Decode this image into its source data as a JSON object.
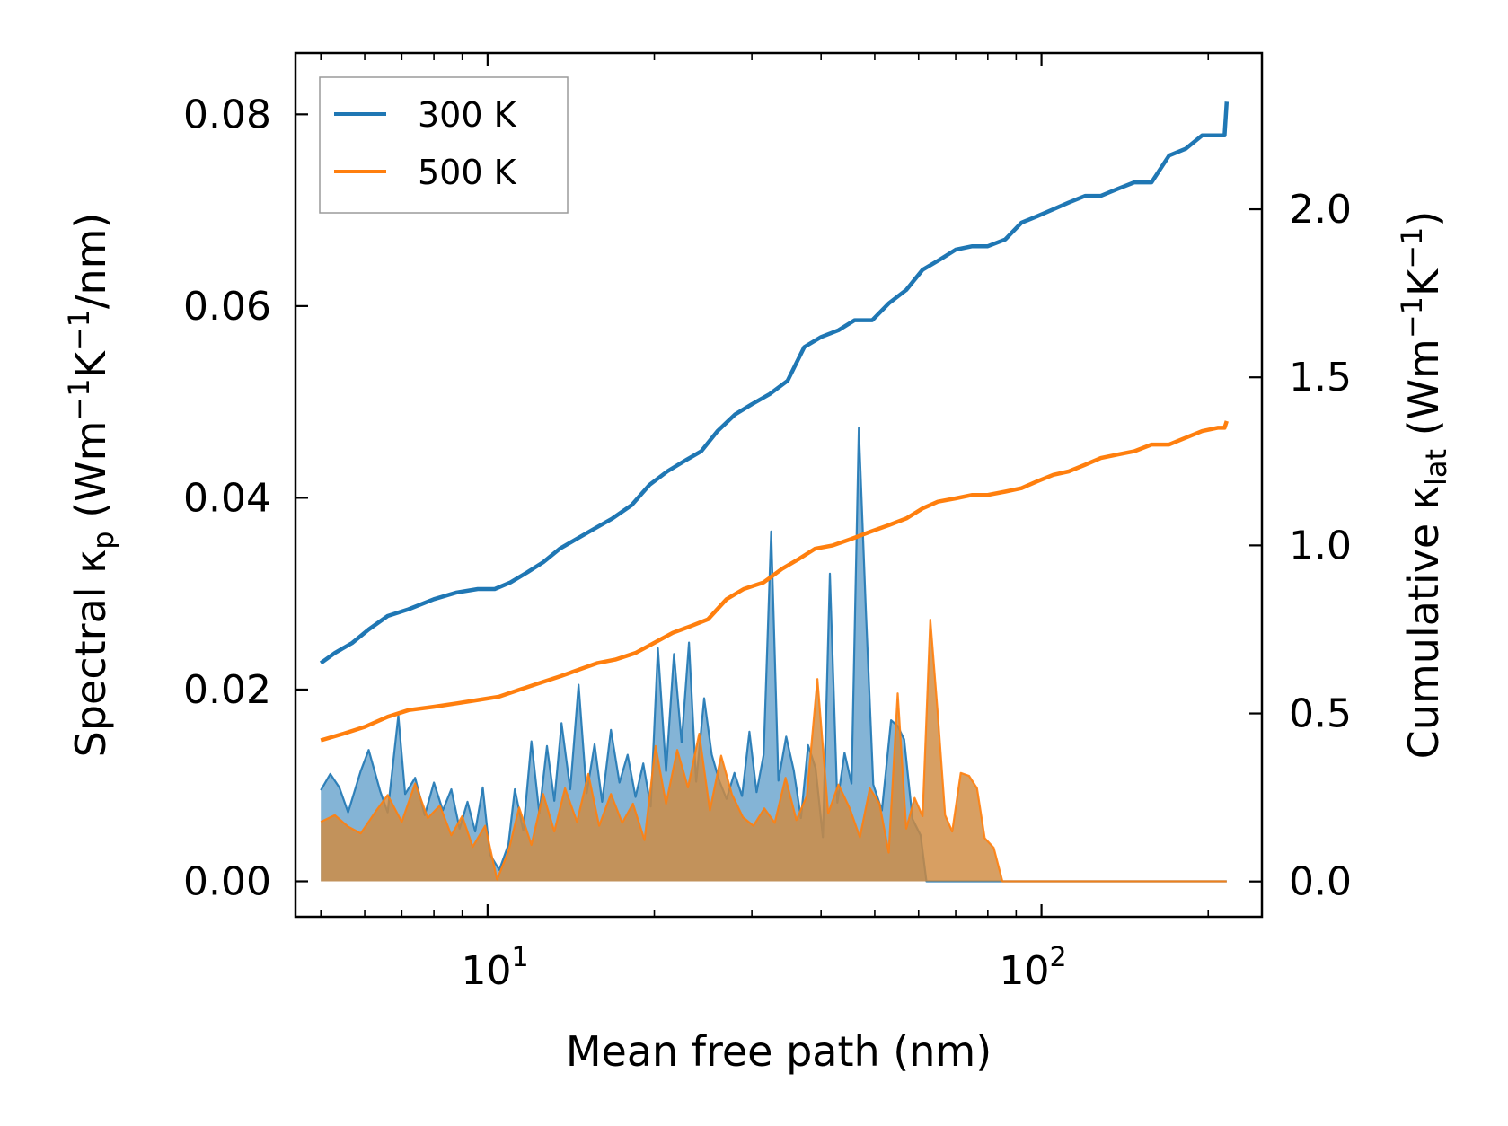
{
  "chart_data": {
    "type": "line",
    "xscale": "log",
    "xlabel": "Mean free path (nm)",
    "xlim": [
      4.5,
      250
    ],
    "x_ticks": [
      {
        "value": 10,
        "base": "10",
        "exp": "1"
      },
      {
        "value": 100,
        "base": "10",
        "exp": "2"
      }
    ],
    "ylabel_left": {
      "pre": "Spectral κ",
      "sub": "p",
      "mid": " (Wm",
      "sup1": "−1",
      "mid2": "K",
      "sup2": "−1",
      "post": "/nm)"
    },
    "ylabel_right": {
      "pre": "Cumulative κ",
      "sub": "lat",
      "mid": " (Wm",
      "sup1": "−1",
      "mid2": "K",
      "sup2": "−1",
      "post": ")"
    },
    "ylim_left": [
      -0.0037,
      0.0864
    ],
    "ylim_right": [
      -0.105,
      2.465
    ],
    "left_ticks": [
      "0.00",
      "0.02",
      "0.04",
      "0.06",
      "0.08"
    ],
    "left_tick_values": [
      0,
      0.02,
      0.04,
      0.06,
      0.08
    ],
    "right_ticks": [
      "0.0",
      "0.5",
      "1.0",
      "1.5",
      "2.0"
    ],
    "right_tick_values": [
      0,
      0.5,
      1.0,
      1.5,
      2.0
    ],
    "legend": {
      "location": "top-left",
      "entries": [
        "300 K",
        "500 K"
      ]
    },
    "colors": {
      "300 K": "#1f77b4",
      "500 K": "#ff7f0e",
      "fill_blue": "#1f77b4",
      "fill_orange": "#d08a3f"
    },
    "cumulative": [
      {
        "name": "300 K",
        "axis": "right",
        "x": [
          5.0,
          5.3,
          5.7,
          6.1,
          6.6,
          7.2,
          8.0,
          8.8,
          9.6,
          10.3,
          11.0,
          11.8,
          12.6,
          13.5,
          14.5,
          15.6,
          16.8,
          18.2,
          19.6,
          21.1,
          22.6,
          24.3,
          26.0,
          28.0,
          30.0,
          32.3,
          34.8,
          37.3,
          40.0,
          43.0,
          46.0,
          49.5,
          53.0,
          57.0,
          61.0,
          65.5,
          70.0,
          75.0,
          80.0,
          86.0,
          92.0,
          98.5,
          105.0,
          112.0,
          120.0,
          128.0,
          137.0,
          147.0,
          158.0,
          170.0,
          182.0,
          195.0,
          208.0,
          214.0,
          216.0
        ],
        "y": [
          0.65,
          0.68,
          0.71,
          0.75,
          0.79,
          0.81,
          0.84,
          0.86,
          0.87,
          0.87,
          0.89,
          0.92,
          0.95,
          0.99,
          1.02,
          1.05,
          1.08,
          1.12,
          1.18,
          1.22,
          1.25,
          1.28,
          1.34,
          1.39,
          1.42,
          1.45,
          1.49,
          1.59,
          1.62,
          1.64,
          1.67,
          1.67,
          1.72,
          1.76,
          1.82,
          1.85,
          1.88,
          1.89,
          1.89,
          1.91,
          1.96,
          1.98,
          2.0,
          2.02,
          2.04,
          2.04,
          2.06,
          2.08,
          2.08,
          2.16,
          2.18,
          2.22,
          2.22,
          2.22,
          2.32
        ]
      },
      {
        "name": "500 K",
        "axis": "right",
        "x": [
          5.0,
          5.5,
          6.0,
          6.6,
          7.2,
          8.0,
          8.8,
          9.6,
          10.5,
          11.4,
          12.4,
          13.5,
          14.6,
          15.8,
          17.0,
          18.5,
          20.0,
          21.6,
          23.3,
          25.0,
          27.0,
          29.0,
          31.5,
          34.0,
          36.5,
          39.0,
          42.0,
          45.5,
          49.0,
          53.0,
          57.0,
          61.0,
          65.0,
          70.0,
          75.0,
          80.0,
          86.0,
          92.0,
          98.0,
          105.0,
          112.0,
          120.0,
          128.0,
          137.0,
          147.0,
          158.0,
          170.0,
          182.0,
          195.0,
          208.0,
          214.0,
          216.0
        ],
        "y": [
          0.42,
          0.44,
          0.46,
          0.49,
          0.51,
          0.52,
          0.53,
          0.54,
          0.55,
          0.57,
          0.59,
          0.61,
          0.63,
          0.65,
          0.66,
          0.68,
          0.71,
          0.74,
          0.76,
          0.78,
          0.84,
          0.87,
          0.89,
          0.93,
          0.96,
          0.99,
          1.0,
          1.02,
          1.04,
          1.06,
          1.08,
          1.11,
          1.13,
          1.14,
          1.15,
          1.15,
          1.16,
          1.17,
          1.19,
          1.21,
          1.22,
          1.24,
          1.26,
          1.27,
          1.28,
          1.3,
          1.3,
          1.32,
          1.34,
          1.35,
          1.35,
          1.37
        ]
      }
    ],
    "spectral": [
      {
        "name": "300 K",
        "axis": "left",
        "x": [
          5.0,
          5.2,
          5.4,
          5.6,
          5.9,
          6.1,
          6.4,
          6.6,
          6.9,
          7.1,
          7.4,
          7.7,
          8.0,
          8.3,
          8.6,
          8.9,
          9.2,
          9.5,
          9.8,
          10.1,
          10.5,
          10.9,
          11.2,
          11.6,
          12.0,
          12.4,
          12.8,
          13.2,
          13.6,
          14.1,
          14.6,
          15.1,
          15.6,
          16.1,
          16.7,
          17.3,
          17.9,
          18.5,
          19.1,
          19.7,
          20.3,
          21.0,
          21.7,
          22.4,
          23.1,
          23.8,
          24.6,
          25.4,
          26.2,
          27.0,
          27.9,
          28.8,
          29.7,
          30.6,
          31.5,
          32.5,
          33.5,
          34.6,
          35.7,
          36.8,
          37.9,
          39.1,
          40.3,
          41.5,
          42.8,
          44.1,
          45.4,
          46.8,
          48.2,
          49.7,
          51.5,
          53.5,
          55.0,
          56.5,
          58.5,
          60.5,
          62.0,
          63.5,
          65.5,
          67.5,
          69.5,
          71.5,
          73.5,
          76.0,
          78.5,
          81.0,
          84.0,
          87.0,
          90.0,
          93.0,
          96.0,
          99.0,
          102.0,
          105.0,
          108.0,
          111.0,
          114.0,
          117.5,
          121.0,
          124.5,
          128.0,
          132.0,
          136.0,
          140.0,
          144.0,
          148.0,
          152.0,
          157.0,
          162.0,
          167.0,
          172.0,
          177.0,
          182.0,
          187.0,
          192.0,
          197.0,
          202.0,
          207.0,
          212.0,
          214.0,
          216.0
        ],
        "y": [
          0.0095,
          0.0112,
          0.0098,
          0.0072,
          0.0115,
          0.0137,
          0.0094,
          0.0072,
          0.0173,
          0.0091,
          0.0108,
          0.0069,
          0.0103,
          0.0074,
          0.0096,
          0.0055,
          0.0083,
          0.0052,
          0.0098,
          0.0028,
          0.0012,
          0.0038,
          0.0096,
          0.0053,
          0.0146,
          0.0071,
          0.0141,
          0.0084,
          0.0165,
          0.0096,
          0.0205,
          0.0092,
          0.0143,
          0.0083,
          0.0158,
          0.0103,
          0.0132,
          0.0088,
          0.0123,
          0.0078,
          0.0243,
          0.0115,
          0.0237,
          0.0145,
          0.0249,
          0.0104,
          0.0191,
          0.0132,
          0.0105,
          0.0086,
          0.0113,
          0.0089,
          0.0156,
          0.0093,
          0.0132,
          0.0365,
          0.0105,
          0.0151,
          0.0116,
          0.0066,
          0.0142,
          0.0118,
          0.0046,
          0.0321,
          0.0082,
          0.0134,
          0.0102,
          0.0473,
          0.0282,
          0.0101,
          0.0074,
          0.0168,
          0.0162,
          0.0148,
          0.0065,
          0.0048,
          0.0,
          0.0,
          0.0,
          0.0,
          0.0,
          0.0,
          0.0,
          0.0,
          0.0,
          0.0,
          0.0,
          0.0,
          0.0,
          0.0,
          0.0,
          0.0,
          0.0,
          0.0,
          0.0,
          0.0,
          0.0,
          0.0,
          0.0,
          0.0,
          0.0,
          0.0,
          0.0,
          0.0,
          0.0,
          0.0,
          0.0,
          0.0,
          0.0,
          0.0,
          0.0,
          0.0,
          0.0,
          0.0,
          0.0,
          0.0,
          0.0,
          0.0,
          0.0,
          0.0,
          0.0
        ]
      },
      {
        "name": "500 K",
        "axis": "left",
        "x": [
          5.0,
          5.3,
          5.6,
          5.9,
          6.3,
          6.6,
          7.0,
          7.4,
          7.8,
          8.2,
          8.6,
          9.0,
          9.4,
          9.9,
          10.4,
          10.9,
          11.4,
          12.0,
          12.6,
          13.2,
          13.8,
          14.5,
          15.2,
          15.9,
          16.7,
          17.5,
          18.3,
          19.2,
          20.1,
          21.0,
          22.0,
          23.0,
          24.1,
          25.2,
          26.4,
          27.6,
          28.9,
          30.2,
          31.6,
          33.0,
          34.5,
          36.1,
          37.7,
          39.4,
          41.2,
          43.0,
          45.0,
          47.0,
          49.0,
          51.0,
          53.0,
          55.0,
          57.0,
          59.0,
          61.0,
          63.0,
          65.0,
          67.0,
          69.0,
          71.5,
          74.0,
          76.5,
          79.0,
          82.0,
          85.0,
          88.0,
          91.0,
          94.0,
          97.5,
          101.0,
          104.5,
          108.0,
          112.0,
          116.0,
          120.0,
          124.0,
          128.0,
          133.0,
          138.0,
          143.0,
          148.0,
          153.0,
          158.0,
          164.0,
          170.0,
          176.0,
          182.0,
          188.0,
          194.0,
          200.0,
          206.0,
          212.0,
          214.0,
          216.0
        ],
        "y": [
          0.0062,
          0.0069,
          0.0057,
          0.005,
          0.0074,
          0.009,
          0.0062,
          0.0102,
          0.0066,
          0.0079,
          0.0048,
          0.0068,
          0.0036,
          0.0058,
          0.0002,
          0.0031,
          0.0077,
          0.0038,
          0.0091,
          0.0052,
          0.0097,
          0.0062,
          0.0112,
          0.0058,
          0.0091,
          0.0061,
          0.0081,
          0.0043,
          0.0141,
          0.0081,
          0.0137,
          0.0098,
          0.0154,
          0.0074,
          0.0131,
          0.0091,
          0.0067,
          0.0058,
          0.0076,
          0.0061,
          0.0108,
          0.0064,
          0.0089,
          0.0211,
          0.0071,
          0.0101,
          0.0077,
          0.0046,
          0.0097,
          0.0081,
          0.003,
          0.0196,
          0.0055,
          0.0087,
          0.0068,
          0.0273,
          0.0174,
          0.0069,
          0.0052,
          0.0113,
          0.011,
          0.0097,
          0.0045,
          0.0035,
          0.0,
          0.0,
          0.0,
          0.0,
          0.0,
          0.0,
          0.0,
          0.0,
          0.0,
          0.0,
          0.0,
          0.0,
          0.0,
          0.0,
          0.0,
          0.0,
          0.0,
          0.0,
          0.0,
          0.0,
          0.0,
          0.0,
          0.0,
          0.0,
          0.0,
          0.0,
          0.0,
          0.0,
          0.0,
          0.0
        ]
      }
    ]
  }
}
